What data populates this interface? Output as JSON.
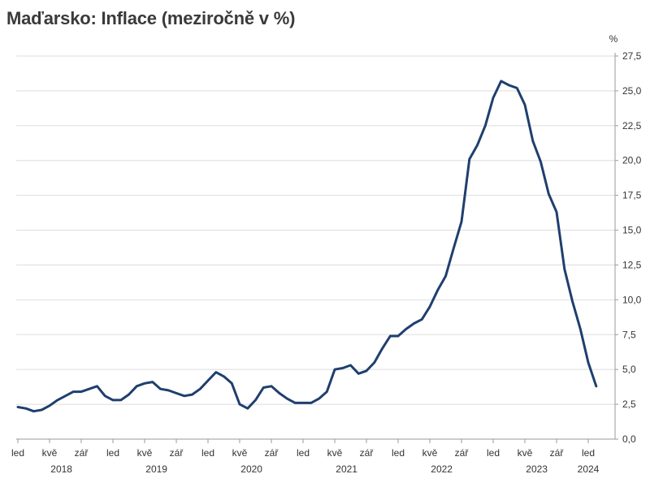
{
  "chart_data": {
    "type": "line",
    "title": "Maďarsko: Inflace (meziročně v %)",
    "ylabel": "%",
    "xlabel": "",
    "ylim": [
      0,
      27.5
    ],
    "yticks": [
      "0,0",
      "2,5",
      "5,0",
      "7,5",
      "10,0",
      "12,5",
      "15,0",
      "17,5",
      "20,0",
      "22,5",
      "25,0",
      "27,5"
    ],
    "xticks": [
      {
        "label": "led",
        "month": 0
      },
      {
        "label": "kvě",
        "month": 4
      },
      {
        "label": "zář",
        "month": 8
      },
      {
        "label": "led",
        "month": 12
      },
      {
        "label": "kvě",
        "month": 16
      },
      {
        "label": "zář",
        "month": 20
      },
      {
        "label": "led",
        "month": 24
      },
      {
        "label": "kvě",
        "month": 28
      },
      {
        "label": "zář",
        "month": 32
      },
      {
        "label": "led",
        "month": 36
      },
      {
        "label": "kvě",
        "month": 40
      },
      {
        "label": "zář",
        "month": 44
      },
      {
        "label": "led",
        "month": 48
      },
      {
        "label": "kvě",
        "month": 52
      },
      {
        "label": "zář",
        "month": 56
      },
      {
        "label": "led",
        "month": 60
      },
      {
        "label": "kvě",
        "month": 64
      },
      {
        "label": "zář",
        "month": 68
      },
      {
        "label": "led",
        "month": 72
      }
    ],
    "years": [
      {
        "label": "2018",
        "month": 5.5
      },
      {
        "label": "2019",
        "month": 17.5
      },
      {
        "label": "2020",
        "month": 29.5
      },
      {
        "label": "2021",
        "month": 41.5
      },
      {
        "label": "2022",
        "month": 53.5
      },
      {
        "label": "2023",
        "month": 65.5
      },
      {
        "label": "2024",
        "month": 72
      }
    ],
    "grid": true,
    "color": "#1f3f6e",
    "series": [
      {
        "values": [
          2.3,
          2.2,
          2.0,
          2.1,
          2.4,
          2.8,
          3.1,
          3.4,
          3.4,
          3.6,
          3.8,
          3.1,
          2.8,
          2.8,
          3.2,
          3.8,
          4.0,
          4.1,
          3.6,
          3.5,
          3.3,
          3.1,
          3.2,
          3.6,
          4.2,
          4.8,
          4.5,
          4.0,
          2.5,
          2.2,
          2.8,
          3.7,
          3.8,
          3.3,
          2.9,
          2.6,
          2.6,
          2.6,
          2.9,
          3.4,
          5.0,
          5.1,
          5.3,
          4.7,
          4.9,
          5.5,
          6.5,
          7.4,
          7.4,
          7.9,
          8.3,
          8.6,
          9.5,
          10.7,
          11.7,
          13.7,
          15.6,
          20.1,
          21.1,
          22.5,
          24.5,
          25.7,
          25.4,
          25.2,
          24.0,
          21.4,
          19.9,
          17.6,
          16.3,
          12.2,
          9.9,
          7.9,
          5.5,
          3.8
        ]
      }
    ]
  }
}
